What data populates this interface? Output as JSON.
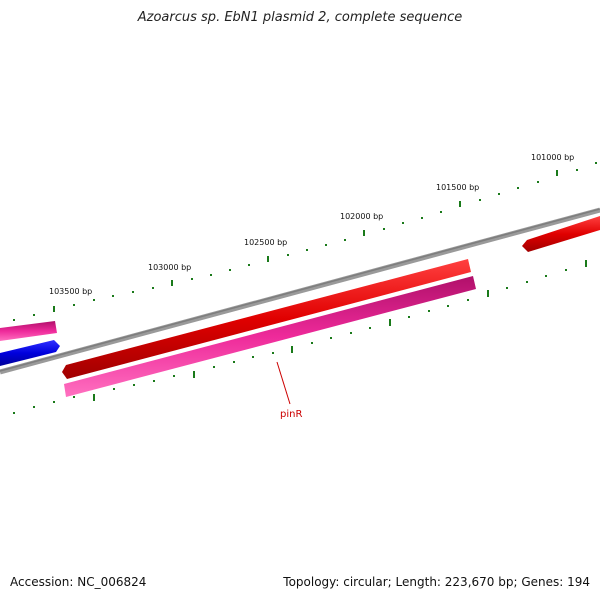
{
  "title": "Azoarcus sp. EbN1 plasmid 2, complete sequence",
  "footer": {
    "accession": "Accession: NC_006824",
    "summary": "Topology: circular; Length: 223,670 bp; Genes: 194"
  },
  "scale_labels": [
    "101000 bp",
    "101500 bp",
    "102000 bp",
    "102500 bp",
    "103000 bp",
    "103500 bp"
  ],
  "gene_labels": [
    "pinR"
  ],
  "colors": {
    "backbone": "#8a8a8a",
    "forward_gene": "#e00000",
    "reverse_gene": "#ee2a9a",
    "blue_gene": "#0000dd",
    "tick": "#1a7a1a",
    "label_line": "#cc0000"
  }
}
